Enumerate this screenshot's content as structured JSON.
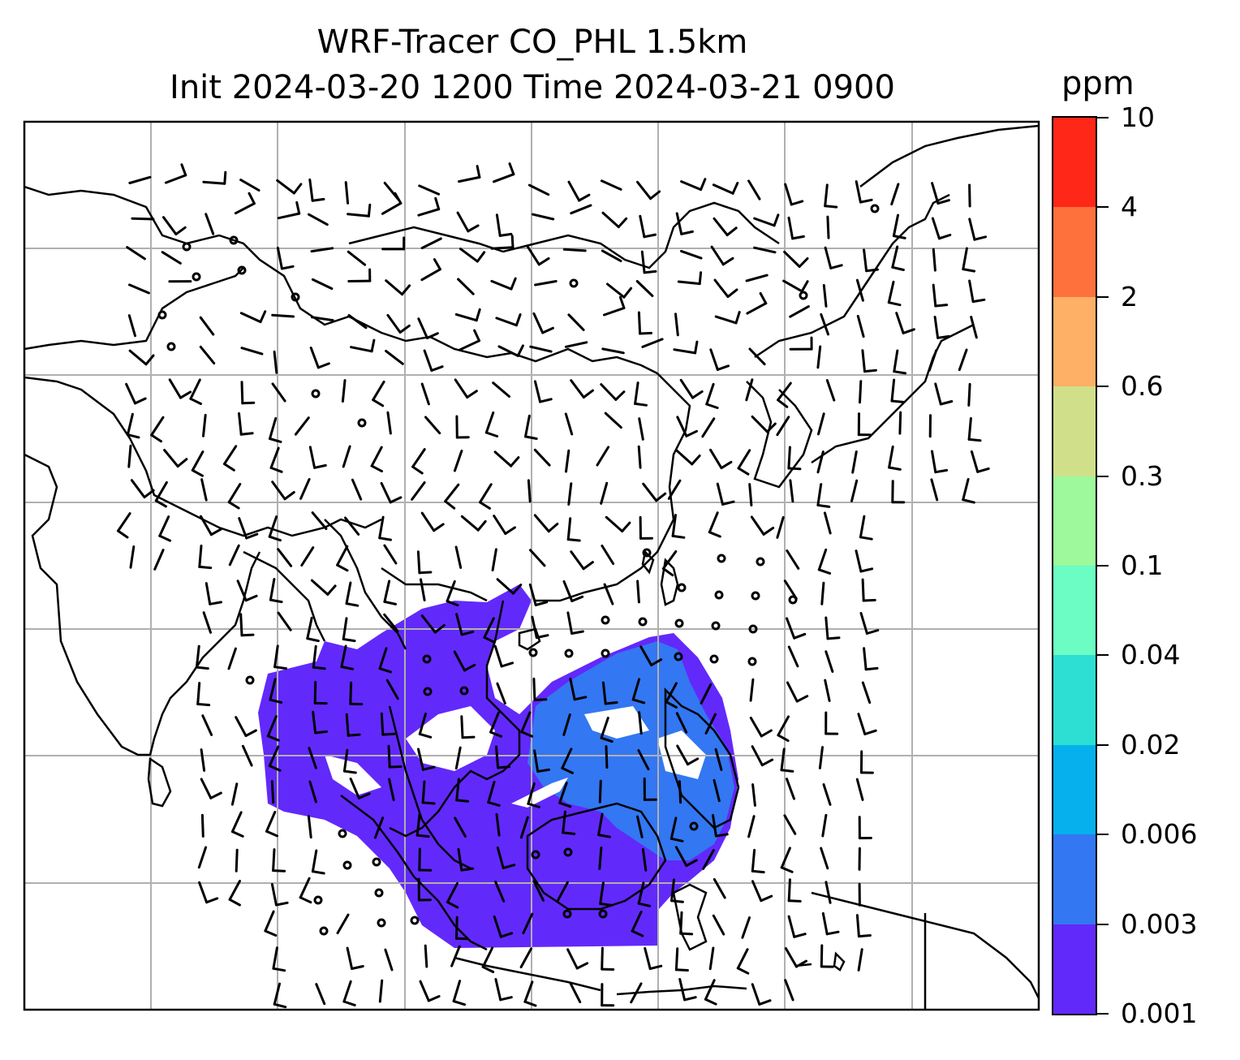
{
  "title": {
    "line1": "WRF-Tracer CO_PHL 1.5km",
    "line2": "Init 2024-03-20 1200 Time 2024-03-21 0900"
  },
  "colorbar": {
    "unit": "ppm",
    "levels": [
      "0.001",
      "0.003",
      "0.006",
      "0.02",
      "0.04",
      "0.1",
      "0.3",
      "0.6",
      "2",
      "4",
      "10"
    ],
    "colors": [
      "#6229fb",
      "#3377f2",
      "#06b0ed",
      "#2ddfd3",
      "#6bfdc4",
      "#9df99b",
      "#d0e08a",
      "#fdb066",
      "#ff713c",
      "#ff2718"
    ]
  },
  "map": {
    "gridlines": true,
    "coastline_color": "#000000",
    "grid_color": "#b0b0b0",
    "tracer_fill_color": "#6229fb",
    "tracer_fill_secondary": "#3377f2"
  }
}
